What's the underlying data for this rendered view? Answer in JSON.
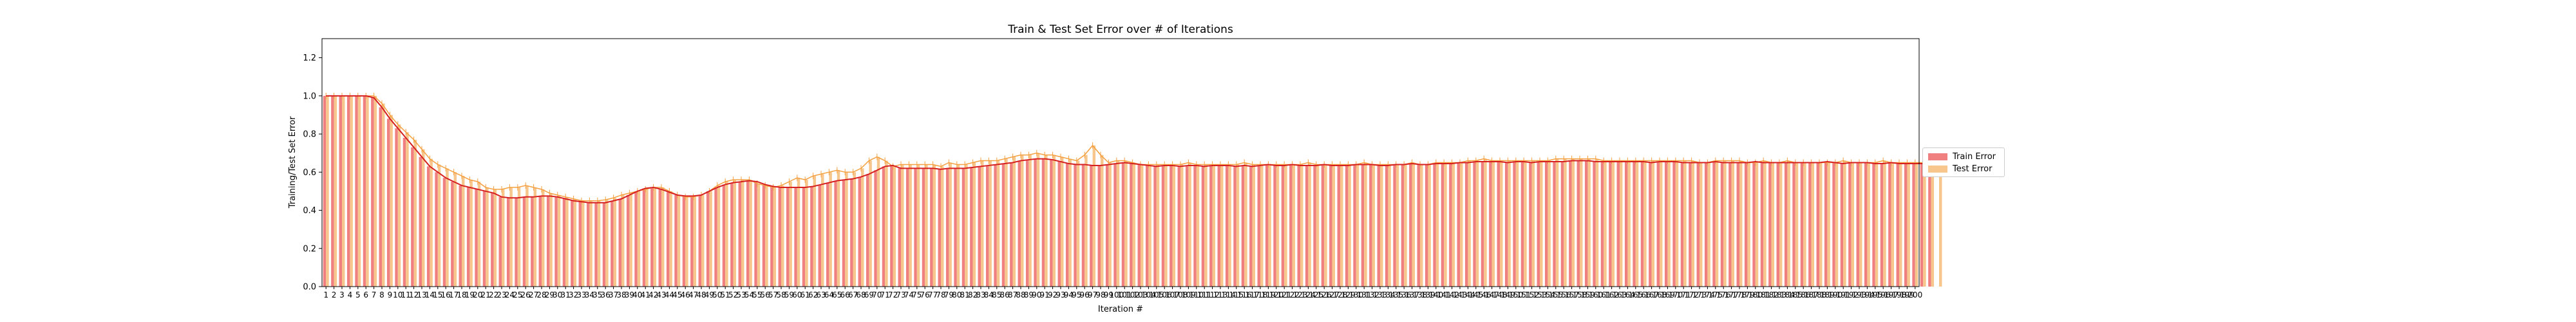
{
  "chart_data": {
    "type": "bar",
    "title": "Train & Test Set Error over # of Iterations",
    "xlabel": "Iteration #",
    "ylabel": "Training/Test Set Error",
    "ylim": [
      0.0,
      1.3
    ],
    "yticks": [
      0.0,
      0.2,
      0.4,
      0.6,
      0.8,
      1.0,
      1.2
    ],
    "x_range": [
      1,
      200
    ],
    "grid": false,
    "legend_position": "right",
    "series": [
      {
        "name": "Train Error",
        "color": "#f08080",
        "line_color": "#d62020",
        "values": [
          1.0,
          1.0,
          1.0,
          1.0,
          1.0,
          1.0,
          0.99,
          0.94,
          0.88,
          0.83,
          0.78,
          0.73,
          0.68,
          0.63,
          0.6,
          0.57,
          0.55,
          0.53,
          0.52,
          0.51,
          0.5,
          0.49,
          0.47,
          0.465,
          0.465,
          0.47,
          0.47,
          0.475,
          0.475,
          0.47,
          0.46,
          0.45,
          0.445,
          0.44,
          0.44,
          0.44,
          0.45,
          0.46,
          0.48,
          0.5,
          0.515,
          0.52,
          0.51,
          0.495,
          0.48,
          0.475,
          0.475,
          0.48,
          0.5,
          0.52,
          0.535,
          0.545,
          0.55,
          0.555,
          0.55,
          0.535,
          0.525,
          0.52,
          0.52,
          0.52,
          0.52,
          0.525,
          0.535,
          0.545,
          0.555,
          0.56,
          0.565,
          0.575,
          0.59,
          0.61,
          0.63,
          0.635,
          0.62,
          0.62,
          0.62,
          0.62,
          0.62,
          0.615,
          0.62,
          0.62,
          0.62,
          0.625,
          0.63,
          0.635,
          0.64,
          0.645,
          0.65,
          0.66,
          0.665,
          0.67,
          0.67,
          0.665,
          0.655,
          0.645,
          0.64,
          0.64,
          0.635,
          0.635,
          0.64,
          0.645,
          0.65,
          0.645,
          0.64,
          0.635,
          0.63,
          0.635,
          0.635,
          0.63,
          0.635,
          0.635,
          0.63,
          0.635,
          0.635,
          0.635,
          0.63,
          0.635,
          0.63,
          0.635,
          0.64,
          0.635,
          0.635,
          0.64,
          0.635,
          0.635,
          0.635,
          0.64,
          0.635,
          0.635,
          0.635,
          0.64,
          0.64,
          0.64,
          0.635,
          0.635,
          0.64,
          0.64,
          0.645,
          0.64,
          0.64,
          0.645,
          0.645,
          0.645,
          0.65,
          0.65,
          0.655,
          0.655,
          0.655,
          0.655,
          0.65,
          0.655,
          0.655,
          0.65,
          0.655,
          0.655,
          0.655,
          0.655,
          0.66,
          0.66,
          0.66,
          0.655,
          0.655,
          0.655,
          0.655,
          0.655,
          0.655,
          0.655,
          0.65,
          0.655,
          0.655,
          0.655,
          0.65,
          0.65,
          0.65,
          0.65,
          0.655,
          0.65,
          0.65,
          0.65,
          0.65,
          0.655,
          0.65,
          0.65,
          0.65,
          0.65,
          0.65,
          0.65,
          0.65,
          0.65,
          0.655,
          0.65,
          0.645,
          0.65,
          0.65,
          0.65,
          0.645,
          0.645,
          0.65,
          0.645,
          0.645,
          0.645,
          0.645,
          0.65
        ]
      },
      {
        "name": "Test Error",
        "color": "#f6c68c",
        "line_color": "#f5a040",
        "values": [
          1.0,
          1.0,
          1.0,
          1.0,
          1.0,
          1.0,
          1.0,
          0.96,
          0.9,
          0.85,
          0.81,
          0.77,
          0.72,
          0.67,
          0.64,
          0.62,
          0.6,
          0.58,
          0.56,
          0.55,
          0.52,
          0.51,
          0.51,
          0.52,
          0.52,
          0.53,
          0.52,
          0.51,
          0.49,
          0.48,
          0.47,
          0.46,
          0.45,
          0.45,
          0.45,
          0.455,
          0.465,
          0.48,
          0.49,
          0.5,
          0.51,
          0.52,
          0.52,
          0.5,
          0.48,
          0.47,
          0.47,
          0.48,
          0.5,
          0.53,
          0.55,
          0.56,
          0.56,
          0.56,
          0.54,
          0.53,
          0.52,
          0.53,
          0.55,
          0.57,
          0.56,
          0.58,
          0.59,
          0.6,
          0.61,
          0.6,
          0.6,
          0.62,
          0.66,
          0.68,
          0.66,
          0.63,
          0.64,
          0.64,
          0.64,
          0.64,
          0.64,
          0.63,
          0.65,
          0.64,
          0.64,
          0.65,
          0.66,
          0.66,
          0.66,
          0.67,
          0.68,
          0.69,
          0.69,
          0.7,
          0.69,
          0.69,
          0.68,
          0.67,
          0.66,
          0.69,
          0.74,
          0.69,
          0.65,
          0.66,
          0.66,
          0.65,
          0.64,
          0.64,
          0.64,
          0.64,
          0.64,
          0.64,
          0.65,
          0.64,
          0.64,
          0.64,
          0.64,
          0.64,
          0.64,
          0.65,
          0.64,
          0.64,
          0.64,
          0.64,
          0.64,
          0.64,
          0.64,
          0.65,
          0.64,
          0.64,
          0.64,
          0.64,
          0.64,
          0.64,
          0.65,
          0.64,
          0.64,
          0.64,
          0.64,
          0.64,
          0.65,
          0.64,
          0.64,
          0.65,
          0.65,
          0.65,
          0.65,
          0.66,
          0.66,
          0.67,
          0.66,
          0.66,
          0.66,
          0.66,
          0.66,
          0.66,
          0.66,
          0.66,
          0.67,
          0.67,
          0.67,
          0.67,
          0.67,
          0.67,
          0.66,
          0.66,
          0.66,
          0.66,
          0.66,
          0.66,
          0.66,
          0.66,
          0.66,
          0.66,
          0.66,
          0.66,
          0.65,
          0.65,
          0.66,
          0.66,
          0.66,
          0.66,
          0.65,
          0.65,
          0.66,
          0.65,
          0.65,
          0.66,
          0.65,
          0.65,
          0.65,
          0.65,
          0.65,
          0.65,
          0.66,
          0.65,
          0.65,
          0.65,
          0.65,
          0.66,
          0.65,
          0.65,
          0.65,
          0.65,
          0.65,
          0.65,
          0.65
        ]
      }
    ]
  }
}
